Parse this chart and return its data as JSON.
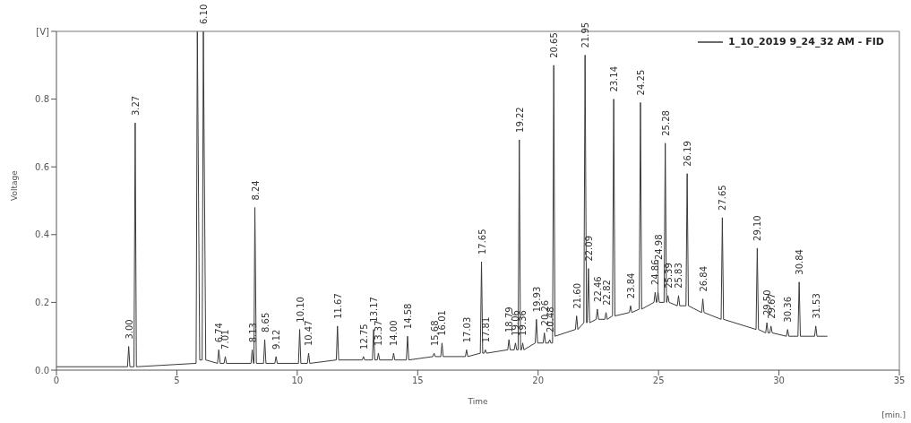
{
  "chart_data": {
    "type": "line",
    "xlabel": "Time",
    "ylabel": "Voltage",
    "legend": "top right",
    "xlim": [
      0,
      35
    ],
    "xticks": [
      0,
      5,
      10,
      15,
      20,
      25,
      30,
      35
    ],
    "ylim": [
      0,
      1.0
    ],
    "yticks": [
      {
        "value": 0,
        "label": "0.0"
      },
      0.2,
      0.4,
      0.6,
      0.8,
      {
        "value": 1.0,
        "label": "[V]"
      }
    ],
    "marker": "none",
    "series": [
      {
        "name": "1_10_2019 9_24_32 AM - FID",
        "color": "#3a3a3a",
        "x": [
          0,
          2.5,
          2.95,
          3.0,
          3.05,
          3.22,
          3.27,
          3.32,
          5.8,
          5.85,
          5.95,
          6.05,
          6.1,
          6.2,
          6.69,
          6.74,
          6.8,
          6.96,
          7.01,
          7.06,
          8.08,
          8.13,
          8.18,
          8.2,
          8.24,
          8.3,
          8.6,
          8.65,
          8.7,
          9.07,
          9.12,
          9.17,
          10.05,
          10.1,
          10.15,
          10.42,
          10.47,
          10.52,
          11.62,
          11.67,
          11.72,
          12.7,
          12.75,
          12.8,
          13.12,
          13.17,
          13.22,
          13.32,
          13.37,
          13.42,
          13.95,
          14.0,
          14.05,
          14.53,
          14.58,
          14.63,
          15.63,
          15.68,
          15.73,
          15.96,
          16.01,
          16.06,
          16.98,
          17.03,
          17.08,
          17.6,
          17.65,
          17.7,
          17.76,
          17.81,
          17.86,
          18.74,
          18.79,
          18.84,
          19.01,
          19.06,
          19.11,
          19.17,
          19.22,
          19.27,
          19.31,
          19.36,
          19.41,
          19.88,
          19.93,
          19.98,
          20.21,
          20.26,
          20.31,
          20.43,
          20.48,
          20.53,
          20.6,
          20.65,
          20.7,
          21.55,
          21.6,
          21.65,
          21.9,
          21.95,
          22.01,
          22.04,
          22.09,
          22.14,
          22.41,
          22.46,
          22.51,
          22.77,
          22.82,
          22.87,
          23.09,
          23.14,
          23.19,
          23.79,
          23.84,
          23.89,
          24.2,
          24.25,
          24.3,
          24.81,
          24.86,
          24.91,
          24.93,
          24.98,
          25.03,
          25.23,
          25.28,
          25.33,
          25.34,
          25.39,
          25.44,
          25.78,
          25.83,
          25.88,
          26.14,
          26.19,
          26.24,
          26.79,
          26.84,
          26.89,
          27.6,
          27.65,
          27.7,
          29.05,
          29.1,
          29.15,
          29.45,
          29.5,
          29.55,
          29.62,
          29.67,
          29.72,
          30.31,
          30.36,
          30.41,
          30.79,
          30.84,
          30.89,
          31.48,
          31.53,
          31.58,
          32.0
        ],
        "values": [
          0.01,
          0.01,
          0.01,
          0.07,
          0.01,
          0.01,
          0.73,
          0.01,
          0.02,
          1.0,
          0.03,
          0.03,
          1.0,
          0.03,
          0.02,
          0.06,
          0.02,
          0.02,
          0.04,
          0.02,
          0.02,
          0.06,
          0.02,
          0.02,
          0.48,
          0.02,
          0.02,
          0.09,
          0.02,
          0.02,
          0.04,
          0.02,
          0.02,
          0.12,
          0.02,
          0.02,
          0.05,
          0.02,
          0.03,
          0.13,
          0.03,
          0.03,
          0.04,
          0.03,
          0.03,
          0.12,
          0.03,
          0.03,
          0.05,
          0.03,
          0.03,
          0.05,
          0.03,
          0.03,
          0.1,
          0.03,
          0.04,
          0.05,
          0.04,
          0.04,
          0.08,
          0.04,
          0.04,
          0.06,
          0.04,
          0.05,
          0.32,
          0.05,
          0.05,
          0.06,
          0.05,
          0.06,
          0.09,
          0.06,
          0.06,
          0.08,
          0.06,
          0.06,
          0.68,
          0.06,
          0.06,
          0.08,
          0.06,
          0.08,
          0.15,
          0.08,
          0.08,
          0.11,
          0.08,
          0.08,
          0.09,
          0.08,
          0.08,
          0.9,
          0.1,
          0.12,
          0.16,
          0.12,
          0.14,
          0.93,
          0.14,
          0.14,
          0.3,
          0.14,
          0.15,
          0.18,
          0.15,
          0.15,
          0.17,
          0.15,
          0.16,
          0.8,
          0.16,
          0.17,
          0.19,
          0.17,
          0.18,
          0.79,
          0.18,
          0.2,
          0.23,
          0.2,
          0.2,
          0.23,
          0.2,
          0.2,
          0.67,
          0.2,
          0.2,
          0.22,
          0.2,
          0.19,
          0.22,
          0.19,
          0.19,
          0.58,
          0.19,
          0.17,
          0.21,
          0.17,
          0.15,
          0.45,
          0.15,
          0.12,
          0.36,
          0.12,
          0.11,
          0.14,
          0.11,
          0.11,
          0.13,
          0.11,
          0.1,
          0.12,
          0.1,
          0.1,
          0.26,
          0.1,
          0.1,
          0.13,
          0.1,
          0.1
        ]
      }
    ],
    "annotations": [
      {
        "text": "3.00",
        "x": 3.0,
        "y": 0.07
      },
      {
        "text": "3.27",
        "x": 3.27,
        "y": 0.73
      },
      {
        "text": "6.10",
        "x": 6.1,
        "y": 1.0
      },
      {
        "text": "6.74",
        "x": 6.74,
        "y": 0.06
      },
      {
        "text": "7.01",
        "x": 7.01,
        "y": 0.04
      },
      {
        "text": "8.13",
        "x": 8.13,
        "y": 0.06
      },
      {
        "text": "8.24",
        "x": 8.24,
        "y": 0.48
      },
      {
        "text": "8.65",
        "x": 8.65,
        "y": 0.09
      },
      {
        "text": "9.12",
        "x": 9.12,
        "y": 0.04
      },
      {
        "text": "10.10",
        "x": 10.1,
        "y": 0.12
      },
      {
        "text": "10.47",
        "x": 10.47,
        "y": 0.05
      },
      {
        "text": "11.67",
        "x": 11.67,
        "y": 0.13
      },
      {
        "text": "12.75",
        "x": 12.75,
        "y": 0.04
      },
      {
        "text": "13.17",
        "x": 13.17,
        "y": 0.12
      },
      {
        "text": "13.37",
        "x": 13.37,
        "y": 0.05
      },
      {
        "text": "14.00",
        "x": 14.0,
        "y": 0.05
      },
      {
        "text": "14.58",
        "x": 14.58,
        "y": 0.1
      },
      {
        "text": "15.68",
        "x": 15.68,
        "y": 0.05
      },
      {
        "text": "16.01",
        "x": 16.01,
        "y": 0.08
      },
      {
        "text": "17.03",
        "x": 17.03,
        "y": 0.06
      },
      {
        "text": "17.65",
        "x": 17.65,
        "y": 0.32
      },
      {
        "text": "17.81",
        "x": 17.81,
        "y": 0.06
      },
      {
        "text": "18.79",
        "x": 18.79,
        "y": 0.09
      },
      {
        "text": "19.06",
        "x": 19.06,
        "y": 0.08
      },
      {
        "text": "19.22",
        "x": 19.22,
        "y": 0.68
      },
      {
        "text": "19.36",
        "x": 19.36,
        "y": 0.08
      },
      {
        "text": "19.93",
        "x": 19.93,
        "y": 0.15
      },
      {
        "text": "20.26",
        "x": 20.26,
        "y": 0.11
      },
      {
        "text": "20.48",
        "x": 20.48,
        "y": 0.09
      },
      {
        "text": "20.65",
        "x": 20.65,
        "y": 0.9
      },
      {
        "text": "21.60",
        "x": 21.6,
        "y": 0.16
      },
      {
        "text": "21.95",
        "x": 21.95,
        "y": 0.93
      },
      {
        "text": "22.09",
        "x": 22.09,
        "y": 0.3
      },
      {
        "text": "22.46",
        "x": 22.46,
        "y": 0.18
      },
      {
        "text": "22.82",
        "x": 22.82,
        "y": 0.17
      },
      {
        "text": "23.14",
        "x": 23.14,
        "y": 0.8
      },
      {
        "text": "23.84",
        "x": 23.84,
        "y": 0.19
      },
      {
        "text": "24.25",
        "x": 24.25,
        "y": 0.79
      },
      {
        "text": "24.86",
        "x": 24.86,
        "y": 0.23
      },
      {
        "text": "24.98",
        "x": 24.98,
        "y": 0.23
      },
      {
        "text": "25.28",
        "x": 25.28,
        "y": 0.67
      },
      {
        "text": "25.39",
        "x": 25.39,
        "y": 0.22
      },
      {
        "text": "25.83",
        "x": 25.83,
        "y": 0.22
      },
      {
        "text": "26.19",
        "x": 26.19,
        "y": 0.58
      },
      {
        "text": "26.84",
        "x": 26.84,
        "y": 0.21
      },
      {
        "text": "27.65",
        "x": 27.65,
        "y": 0.45
      },
      {
        "text": "29.10",
        "x": 29.1,
        "y": 0.36
      },
      {
        "text": "29.50",
        "x": 29.5,
        "y": 0.14
      },
      {
        "text": "29.67",
        "x": 29.67,
        "y": 0.13
      },
      {
        "text": "30.36",
        "x": 30.36,
        "y": 0.12
      },
      {
        "text": "30.84",
        "x": 30.84,
        "y": 0.26
      },
      {
        "text": "31.53",
        "x": 31.53,
        "y": 0.13
      },
      "[min.]"
    ]
  }
}
